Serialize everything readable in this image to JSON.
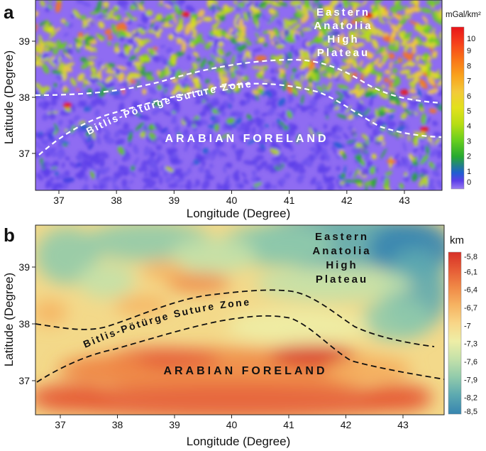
{
  "figure": {
    "panel_a": {
      "letter": "a",
      "xlabel": "Longitude (Degree)",
      "ylabel": "Latitude (Degree)",
      "x_ticks": [
        "37",
        "38",
        "39",
        "40",
        "41",
        "42",
        "43"
      ],
      "y_ticks": [
        "39",
        "38",
        "37"
      ],
      "colorbar_unit": "mGal/km²",
      "colorbar_labels": [
        "10",
        "9",
        "8",
        "7",
        "6",
        "5",
        "4",
        "3",
        "2",
        "1",
        "0"
      ],
      "colorbar_colors": [
        "#e8141a",
        "#f6411c",
        "#f97418",
        "#f9a21c",
        "#f3c93a",
        "#e2e11c",
        "#b7dd14",
        "#68cf1e",
        "#27a92f",
        "#1f5fd0",
        "#5b3ee8",
        "#9b7df2"
      ],
      "labels": {
        "eastern_1": "Eastern",
        "eastern_2": "Anatolia",
        "eastern_3": "High",
        "eastern_4": "Plateau",
        "suture": "Bitlis-Pötürge Suture Zone",
        "foreland": "ARABIAN FORELAND"
      }
    },
    "panel_b": {
      "letter": "b",
      "xlabel": "Longitude (Degree)",
      "ylabel": "Latitude (Degree)",
      "x_ticks": [
        "37",
        "38",
        "39",
        "40",
        "41",
        "42",
        "43"
      ],
      "y_ticks": [
        "39",
        "38",
        "37"
      ],
      "colorbar_unit": "km",
      "colorbar_labels": [
        "-5,8",
        "-6,1",
        "-6,4",
        "-6,7",
        "-7",
        "-7,3",
        "-7,6",
        "-7,9",
        "-8,2",
        "-8,5"
      ],
      "colorbar_colors": [
        "#d73027",
        "#e65c36",
        "#f08a47",
        "#f6b463",
        "#f8d688",
        "#eeeea6",
        "#c4e1a9",
        "#92cbab",
        "#5eaab0",
        "#3785b0"
      ],
      "labels": {
        "eastern_1": "Eastern",
        "eastern_2": "Anatolia",
        "eastern_3": "High",
        "eastern_4": "Plateau",
        "suture": "Bitlis-Pötürge Suture Zone",
        "foreland": "ARABIAN FORELAND"
      }
    },
    "colors": {
      "field_a_base": "#8f6cf2",
      "field_b_base": "#f3d98a",
      "boundary_a": "#ffffff",
      "boundary_b": "#111111"
    }
  }
}
